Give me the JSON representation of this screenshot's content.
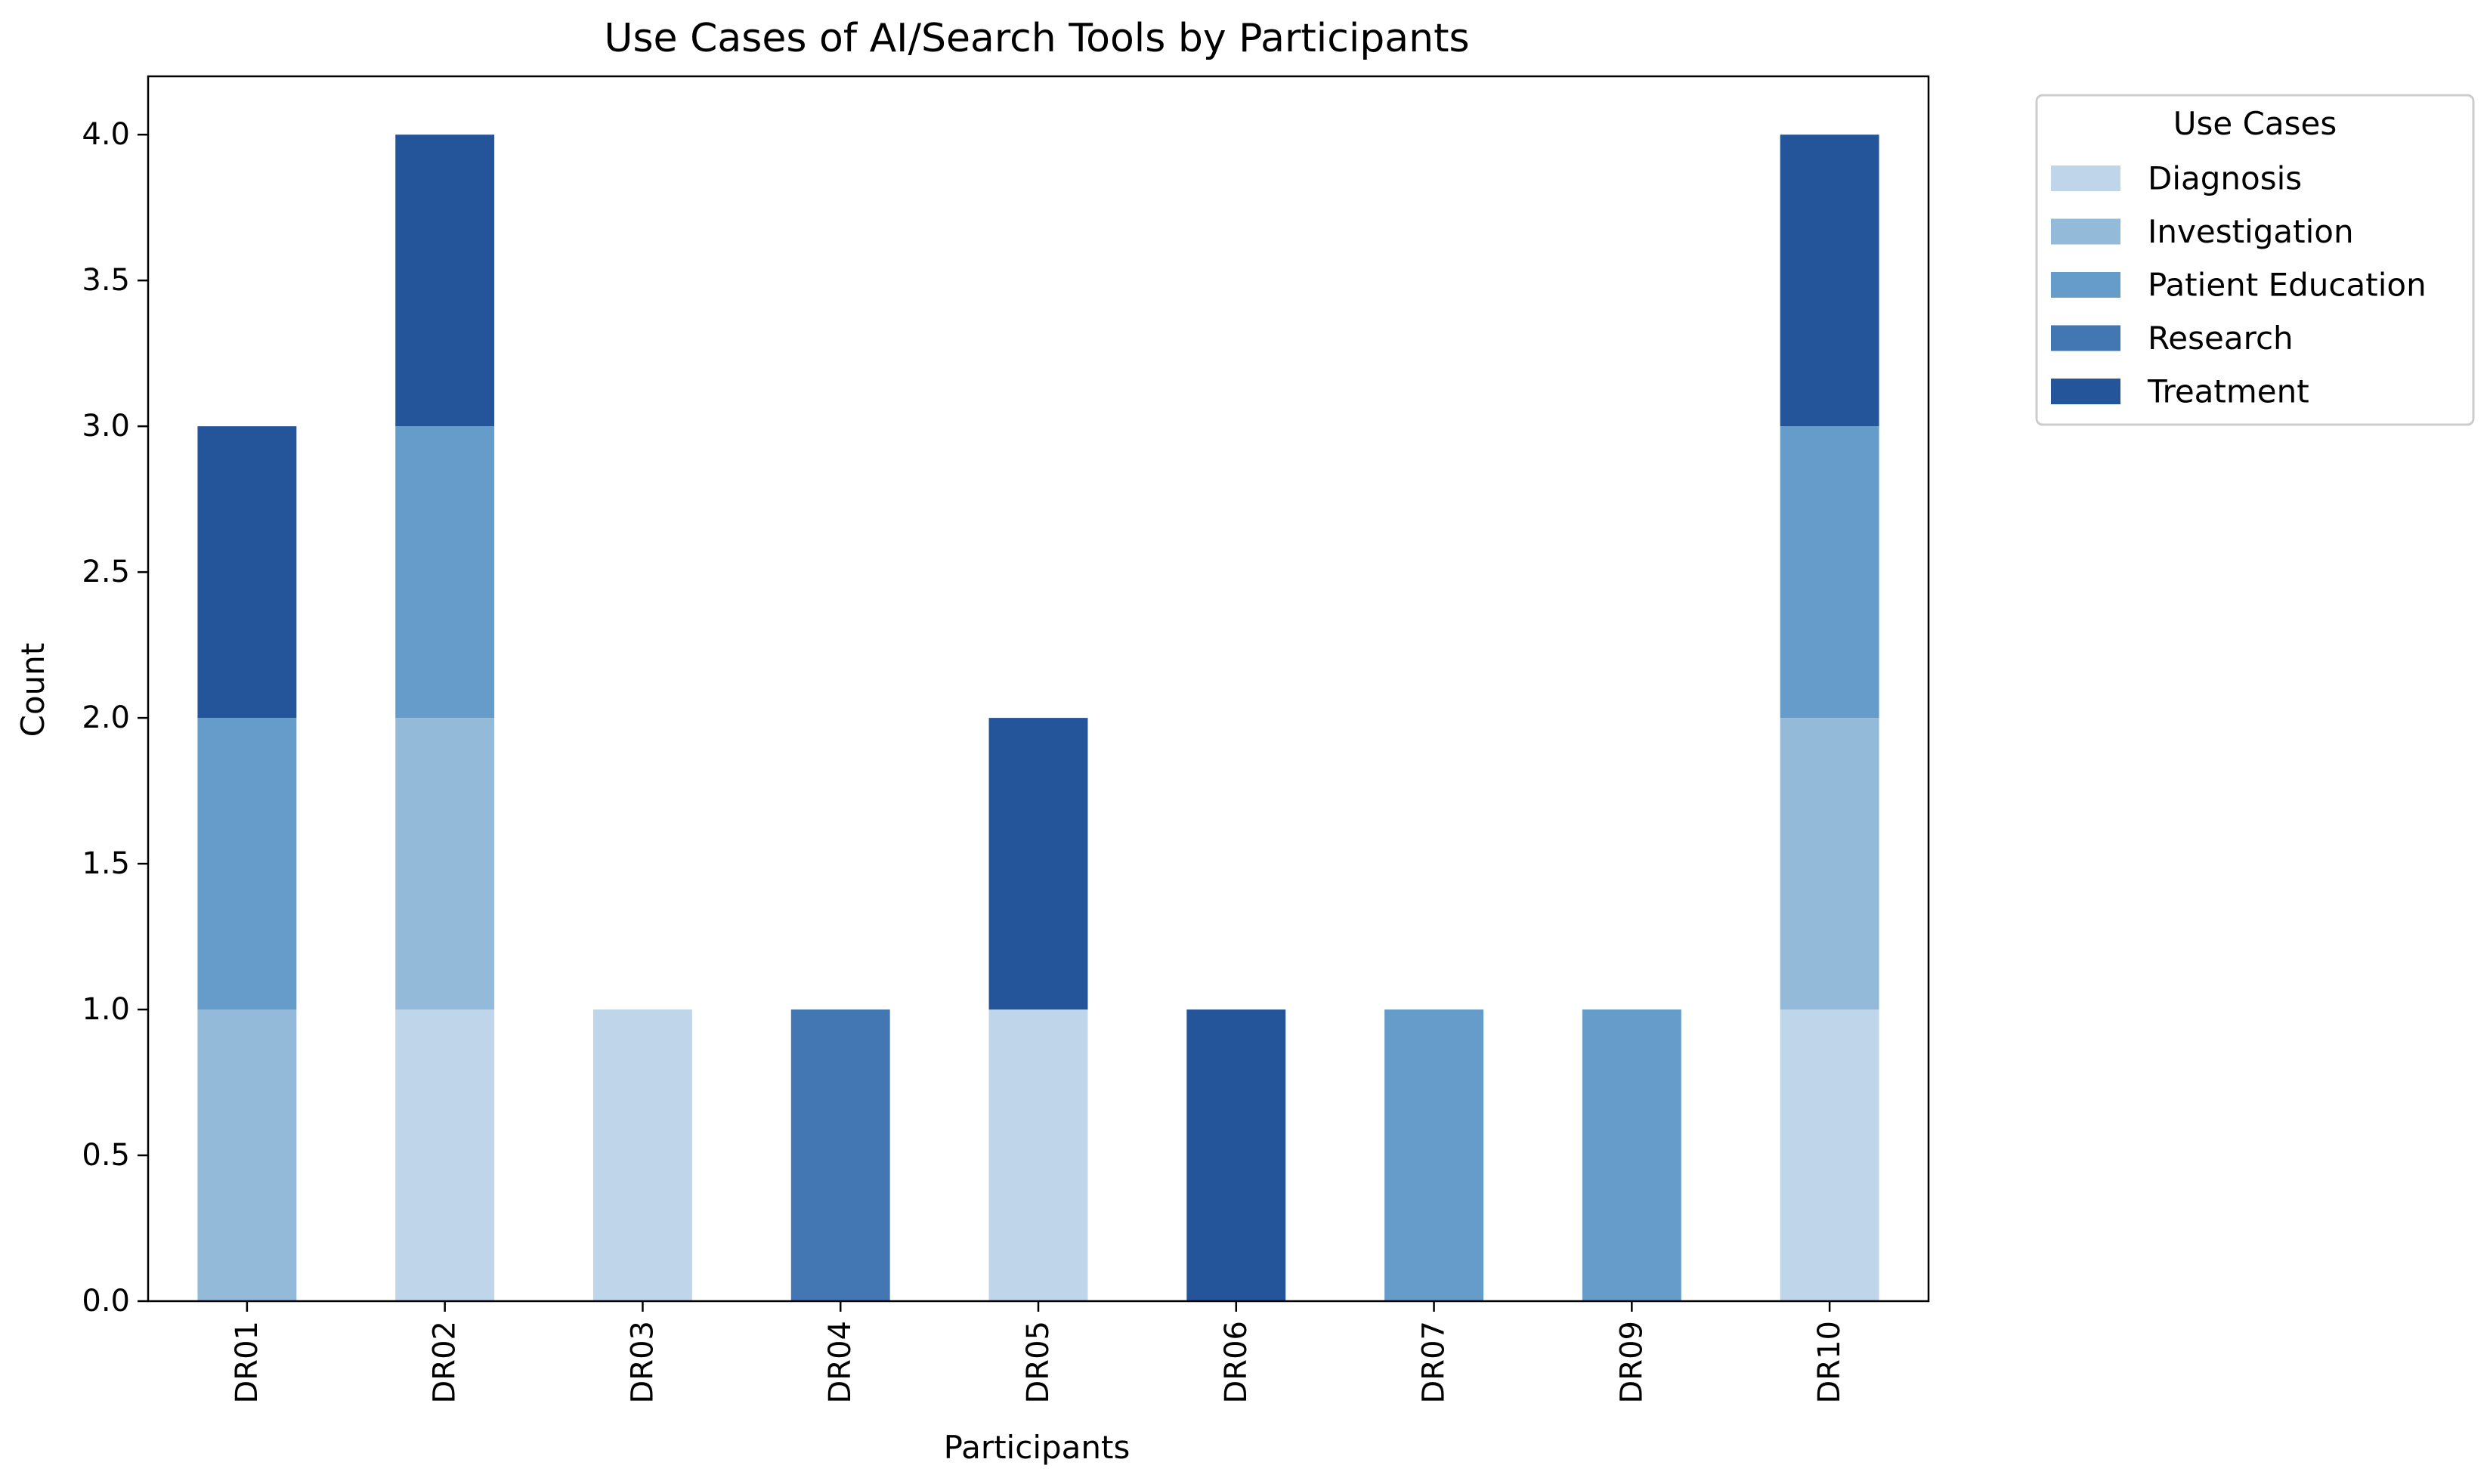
{
  "chart_data": {
    "type": "bar",
    "stacked": true,
    "title": "Use Cases of AI/Search Tools by Participants",
    "xlabel": "Participants",
    "ylabel": "Count",
    "ylim": [
      0,
      4.2
    ],
    "yticks": [
      "0.0",
      "0.5",
      "1.0",
      "1.5",
      "2.0",
      "2.5",
      "3.0",
      "3.5",
      "4.0"
    ],
    "categories": [
      "DR01",
      "DR02",
      "DR03",
      "DR04",
      "DR05",
      "DR06",
      "DR07",
      "DR09",
      "DR10"
    ],
    "series": [
      {
        "name": "Diagnosis",
        "color": "#bfd5ea",
        "values": [
          0,
          1,
          1,
          0,
          1,
          0,
          0,
          0,
          1
        ]
      },
      {
        "name": "Investigation",
        "color": "#93bad9",
        "values": [
          1,
          1,
          0,
          0,
          0,
          0,
          0,
          0,
          1
        ]
      },
      {
        "name": "Patient Education",
        "color": "#659cca",
        "values": [
          1,
          1,
          0,
          0,
          0,
          0,
          1,
          1,
          1
        ]
      },
      {
        "name": "Research",
        "color": "#4277b3",
        "values": [
          0,
          0,
          0,
          1,
          0,
          0,
          0,
          0,
          0
        ]
      },
      {
        "name": "Treatment",
        "color": "#245499",
        "values": [
          1,
          1,
          0,
          0,
          1,
          1,
          0,
          0,
          1
        ]
      }
    ],
    "grid": false,
    "legend": {
      "title": "Use Cases",
      "placement": "outside top-right"
    }
  }
}
